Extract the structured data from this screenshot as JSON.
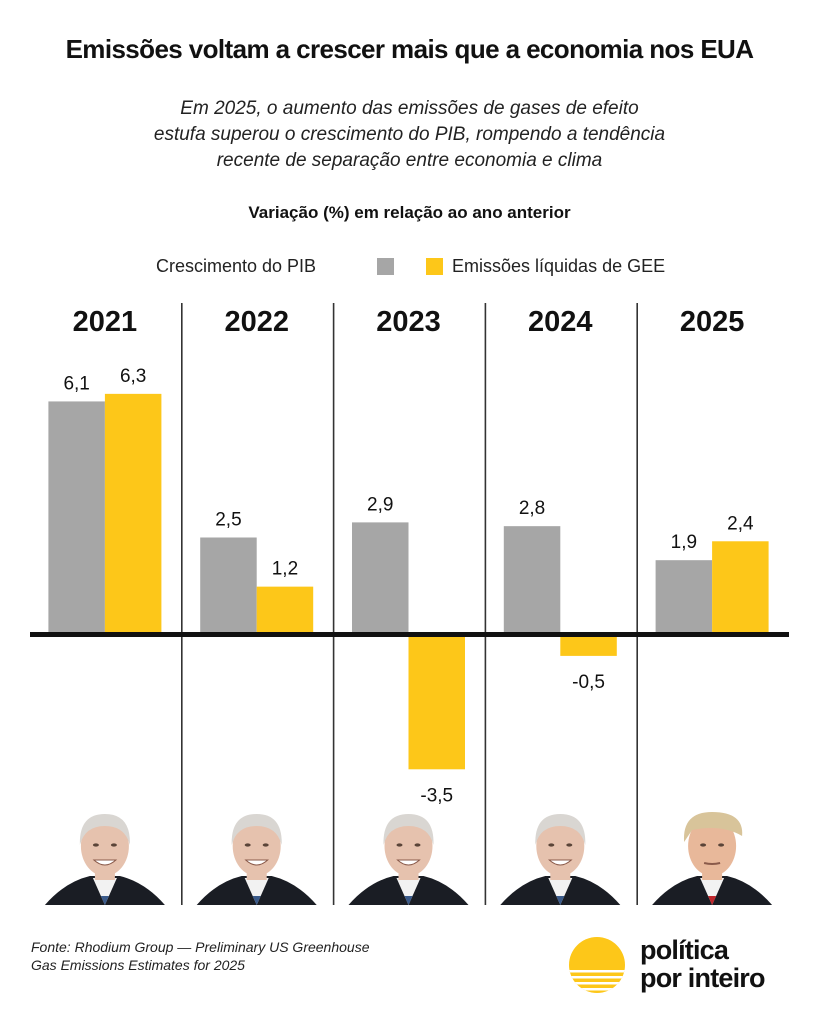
{
  "header": {
    "title": "Emissões voltam a crescer mais que a economia nos EUA",
    "subtitle_lines": [
      "Em 2025, o aumento das emissões de gases de efeito",
      "estufa superou o crescimento do PIB, rompendo a tendência",
      "recente de separação entre economia e clima"
    ]
  },
  "colors": {
    "gdp": "#a6a6a6",
    "emissions": "#fdc719",
    "axis": "#111111",
    "divider": "#333333"
  },
  "chart_data": {
    "type": "bar",
    "title": "Variação (%) em relação ao ano anterior",
    "xlabel": "",
    "ylabel": "Variação (%)",
    "categories": [
      "2021",
      "2022",
      "2023",
      "2024",
      "2025"
    ],
    "series": [
      {
        "name": "Crescimento do PIB",
        "color": "#a6a6a6",
        "values": [
          6.1,
          2.5,
          2.9,
          2.8,
          1.9
        ],
        "labels": [
          "6,1",
          "2,5",
          "2,9",
          "2,8",
          "1,9"
        ]
      },
      {
        "name": "Emissões líquidas de GEE",
        "color": "#fdc719",
        "values": [
          6.3,
          1.2,
          -3.5,
          -0.5,
          2.4
        ],
        "labels": [
          "6,3",
          "1,2",
          "-3,5",
          "-0,5",
          "2,4"
        ]
      }
    ],
    "ylim": [
      -3.5,
      6.3
    ],
    "grid": false,
    "legend": "top-center",
    "panel_presidents": [
      "Biden",
      "Biden",
      "Biden",
      "Biden",
      "Trump"
    ]
  },
  "footer": {
    "source_lines": [
      "Fonte: Rhodium Group — Preliminary US Greenhouse",
      "Gas Emissions Estimates for 2025"
    ],
    "logo_lines": [
      "política",
      "por inteiro"
    ],
    "logo_icon": "sun-over-water-icon"
  }
}
